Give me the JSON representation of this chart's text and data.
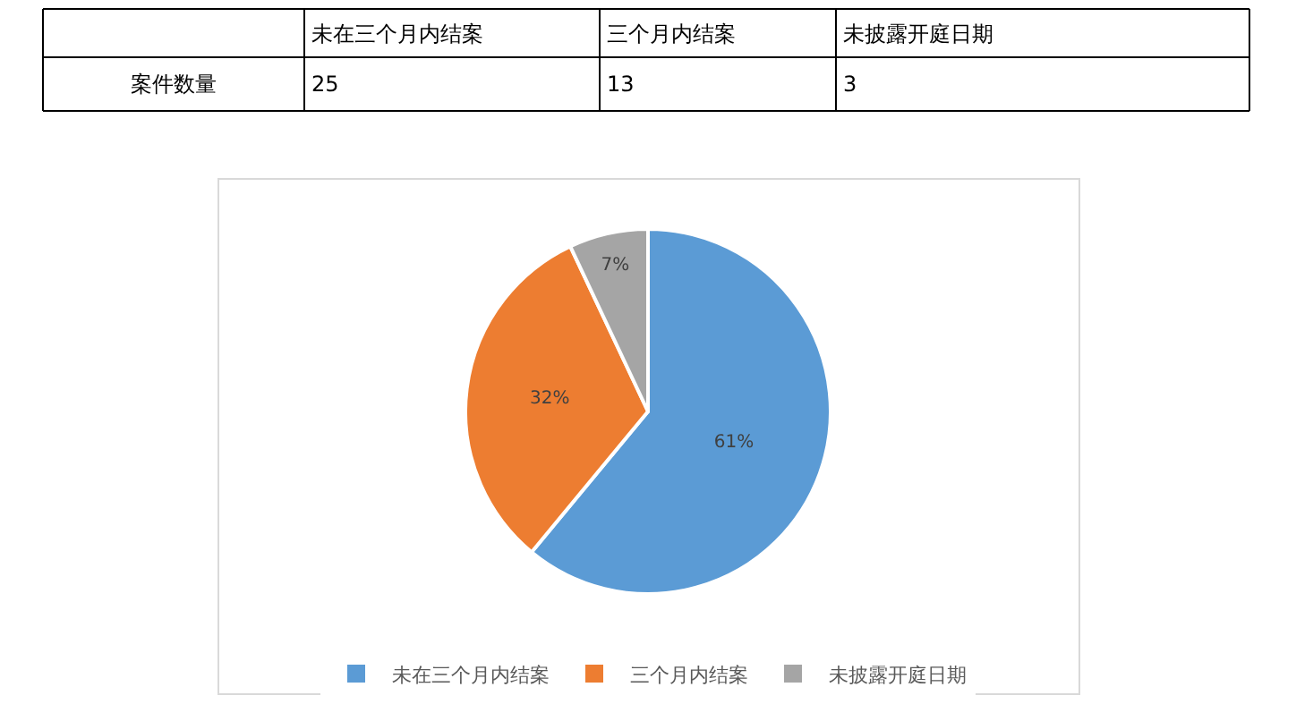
{
  "chart_data": [
    {
      "type": "other",
      "categories": [
        "未在三个月内结案",
        "三个月内结案",
        "未披露开庭日期"
      ],
      "ylabel": "案件数量",
      "values": [
        25,
        13,
        3
      ],
      "data_labels": true
    },
    {
      "type": "pie",
      "categories": [
        "未在三个月内结案",
        "三个月内结案",
        "未披露开庭日期"
      ],
      "values": [
        61,
        32,
        7
      ],
      "colors": [
        "#5b9bd5",
        "#ed7d31",
        "#a5a5a5"
      ],
      "value_labels": [
        "61%",
        "32%",
        "7%"
      ],
      "legend": "bottom"
    }
  ]
}
